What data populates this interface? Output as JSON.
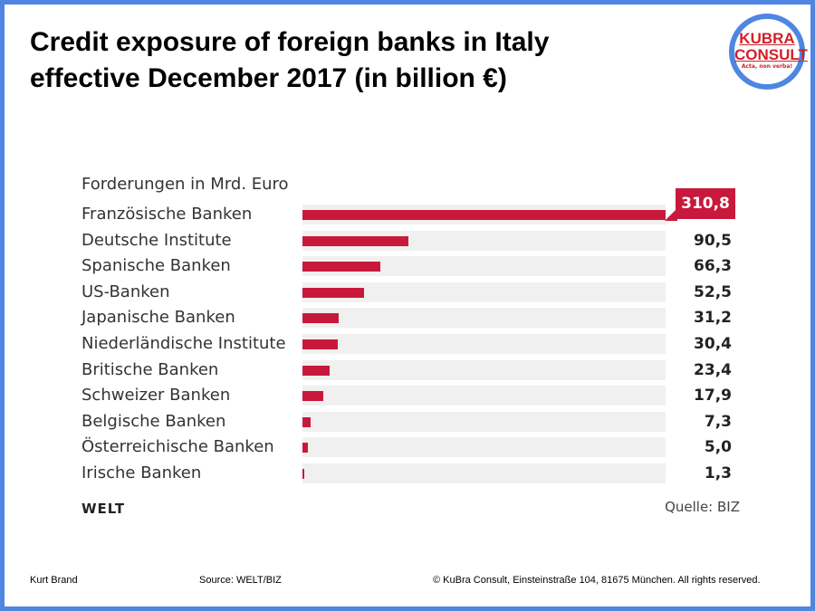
{
  "title_lines": [
    "Credit exposure of foreign banks in Italy",
    "effective December 2017 (in billion €)"
  ],
  "logo": {
    "line1": "KUBRA",
    "line2": "CONSULT",
    "tagline": "Acta, non verba!"
  },
  "chart_data": {
    "type": "bar",
    "orientation": "horizontal",
    "subtitle": "Forderungen in Mrd. Euro",
    "categories": [
      "Französische Banken",
      "Deutsche Institute",
      "Spanische Banken",
      "US-Banken",
      "Japanische Banken",
      "Niederländische Institute",
      "Britische Banken",
      "Schweizer Banken",
      "Belgische Banken",
      "Österreichische Banken",
      "Irische Banken"
    ],
    "values": [
      310.8,
      90.5,
      66.3,
      52.5,
      31.2,
      30.4,
      23.4,
      17.9,
      7.3,
      5.0,
      1.3
    ],
    "value_labels": [
      "310,8",
      "90,5",
      "66,3",
      "52,5",
      "31,2",
      "30,4",
      "23,4",
      "17,9",
      "7,3",
      "5,0",
      "1,3"
    ],
    "xlim": [
      0,
      310.8
    ],
    "highlighted_index": 0,
    "bar_color": "#c8193c",
    "track_color": "#f0f0f0",
    "brand": "WELT",
    "source": "Quelle: BIZ"
  },
  "footer": {
    "author": "Kurt Brand",
    "source": "Source: WELT/BIZ",
    "copyright": "© KuBra Consult, Einsteinstraße 104, 81675 München. All rights reserved."
  }
}
